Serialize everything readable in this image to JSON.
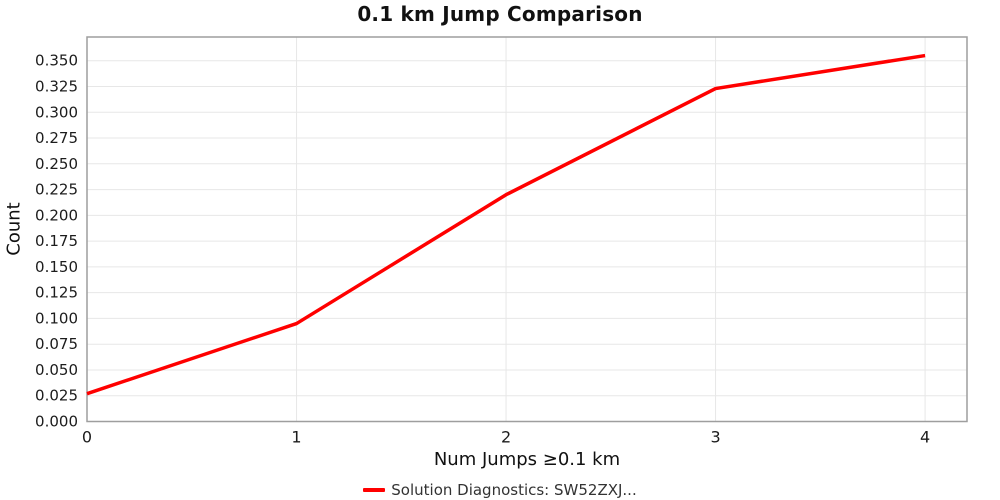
{
  "window": {
    "background": "#ffffff"
  },
  "chart_data": {
    "type": "line",
    "title": "0.1 km Jump Comparison",
    "xlabel": "Num Jumps ≥0.1 km",
    "ylabel": "Count",
    "x": [
      0,
      1,
      2,
      3,
      4
    ],
    "series": [
      {
        "name": "Solution Diagnostics: SW52ZXJ...",
        "color": "#ff0000",
        "values": [
          0.027,
          0.095,
          0.22,
          0.323,
          0.355
        ]
      }
    ],
    "xlim": [
      0,
      4.2
    ],
    "ylim": [
      0,
      0.373
    ],
    "xticks": [
      {
        "value": 0,
        "label": "0"
      },
      {
        "value": 1,
        "label": "1"
      },
      {
        "value": 2,
        "label": "2"
      },
      {
        "value": 3,
        "label": "3"
      },
      {
        "value": 4,
        "label": "4"
      }
    ],
    "yticks": [
      {
        "value": 0.0,
        "label": "0.000"
      },
      {
        "value": 0.025,
        "label": "0.025"
      },
      {
        "value": 0.05,
        "label": "0.050"
      },
      {
        "value": 0.075,
        "label": "0.075"
      },
      {
        "value": 0.1,
        "label": "0.100"
      },
      {
        "value": 0.125,
        "label": "0.125"
      },
      {
        "value": 0.15,
        "label": "0.150"
      },
      {
        "value": 0.175,
        "label": "0.175"
      },
      {
        "value": 0.2,
        "label": "0.200"
      },
      {
        "value": 0.225,
        "label": "0.225"
      },
      {
        "value": 0.25,
        "label": "0.250"
      },
      {
        "value": 0.275,
        "label": "0.275"
      },
      {
        "value": 0.3,
        "label": "0.300"
      },
      {
        "value": 0.325,
        "label": "0.325"
      },
      {
        "value": 0.35,
        "label": "0.350"
      }
    ],
    "grid": true,
    "legend_position": "bottom-center",
    "styles": {
      "grid_color": "#e7e7e7",
      "axis_color": "#9e9e9e",
      "text_color": "#1c1c1c",
      "line_width": 3.5
    }
  }
}
